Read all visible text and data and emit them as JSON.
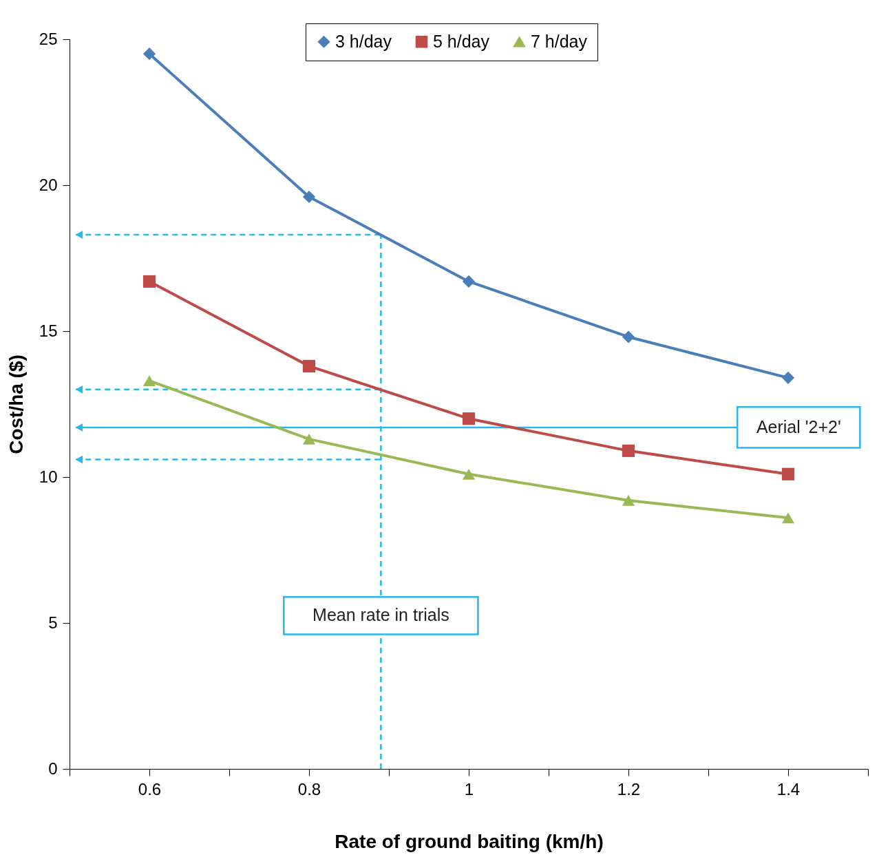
{
  "chart_data": {
    "type": "line",
    "xlabel": "Rate of ground baiting (km/h)",
    "ylabel": "Cost/ha ($)",
    "x": [
      0.6,
      0.8,
      1,
      1.2,
      1.4
    ],
    "xlim": [
      0.5,
      1.5
    ],
    "xticks": [
      {
        "value": 0.5,
        "label": null
      },
      0.6,
      {
        "value": 0.7,
        "label": null
      },
      0.8,
      {
        "value": 0.9,
        "label": null
      },
      1,
      {
        "value": 1.1,
        "label": null
      },
      1.2,
      {
        "value": 1.3,
        "label": null
      },
      1.4,
      {
        "value": 1.5,
        "label": null
      }
    ],
    "ylim": [
      0,
      25
    ],
    "yticks": [
      0,
      5,
      10,
      15,
      20,
      25
    ],
    "grid": false,
    "legend": "top",
    "line_style": "solid",
    "series": [
      {
        "name": "3 h/day",
        "color": "#4a7ebb",
        "marker": "diamond",
        "values": [
          24.5,
          19.6,
          16.7,
          14.8,
          13.4
        ]
      },
      {
        "name": "5 h/day",
        "color": "#be4b48",
        "marker": "square",
        "values": [
          16.7,
          13.8,
          12.0,
          10.9,
          10.1
        ]
      },
      {
        "name": "7 h/day",
        "color": "#98b954",
        "marker": "triangle",
        "values": [
          13.3,
          11.3,
          10.1,
          9.2,
          8.6
        ]
      }
    ],
    "ref_lines": [
      {
        "axis": "x",
        "value": 0.89,
        "label": "Mean rate in trials",
        "line_style": "dashed",
        "color": "#29b6ec"
      },
      {
        "axis": "y",
        "value": 11.7,
        "label": "Aerial '2+2'",
        "line_style": "solid",
        "color": "#29b6ec"
      },
      {
        "axis": "y",
        "value": 18.3,
        "line_style": "dashed",
        "color": "#29b6ec"
      },
      {
        "axis": "y",
        "value": 13.0,
        "line_style": "dashed",
        "color": "#29b6ec"
      },
      {
        "axis": "y",
        "value": 10.6,
        "line_style": "dashed",
        "color": "#29b6ec"
      }
    ]
  }
}
